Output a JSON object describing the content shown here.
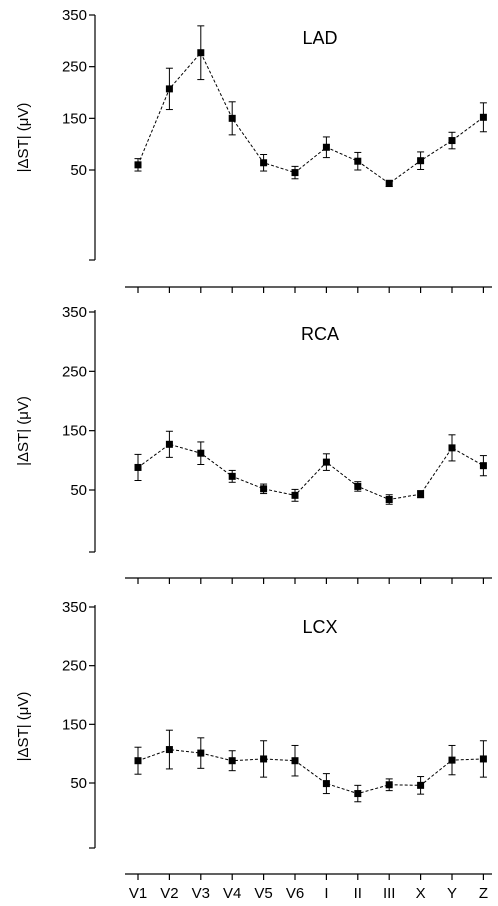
{
  "chart_data": [
    {
      "type": "line",
      "title": "LAD",
      "ylabel": "|ΔST| (μV)",
      "yticks": [
        50,
        150,
        250,
        350
      ],
      "ylim": [
        0,
        350
      ],
      "categories": [
        "V1",
        "V2",
        "V3",
        "V4",
        "V5",
        "V6",
        "I",
        "II",
        "III",
        "X",
        "Y",
        "Z"
      ],
      "values": [
        60,
        207,
        277,
        150,
        64,
        45,
        94,
        67,
        24,
        68,
        107,
        152
      ],
      "errors": [
        12,
        40,
        52,
        32,
        16,
        12,
        20,
        17,
        6,
        17,
        16,
        28
      ],
      "line_style": "dashed",
      "marker": "square"
    },
    {
      "type": "line",
      "title": "RCA",
      "ylabel": "|ΔST| (μV)",
      "yticks": [
        50,
        150,
        250,
        350
      ],
      "ylim": [
        0,
        350
      ],
      "categories": [
        "V1",
        "V2",
        "V3",
        "V4",
        "V5",
        "V6",
        "I",
        "II",
        "III",
        "X",
        "Y",
        "Z"
      ],
      "values": [
        88,
        127,
        112,
        73,
        52,
        41,
        97,
        56,
        34,
        43,
        121,
        91
      ],
      "errors": [
        22,
        22,
        19,
        10,
        8,
        10,
        14,
        8,
        8,
        6,
        22,
        17
      ],
      "line_style": "dashed",
      "marker": "square"
    },
    {
      "type": "line",
      "title": "LCX",
      "ylabel": "|ΔST| (μV)",
      "yticks": [
        50,
        150,
        250,
        350
      ],
      "ylim": [
        0,
        350
      ],
      "categories": [
        "V1",
        "V2",
        "V3",
        "V4",
        "V5",
        "V6",
        "I",
        "II",
        "III",
        "X",
        "Y",
        "Z"
      ],
      "values": [
        88,
        107,
        101,
        88,
        91,
        88,
        49,
        32,
        47,
        46,
        89,
        91
      ],
      "errors": [
        23,
        33,
        26,
        17,
        31,
        26,
        17,
        14,
        10,
        15,
        25,
        31
      ],
      "line_style": "dashed",
      "marker": "square"
    }
  ]
}
